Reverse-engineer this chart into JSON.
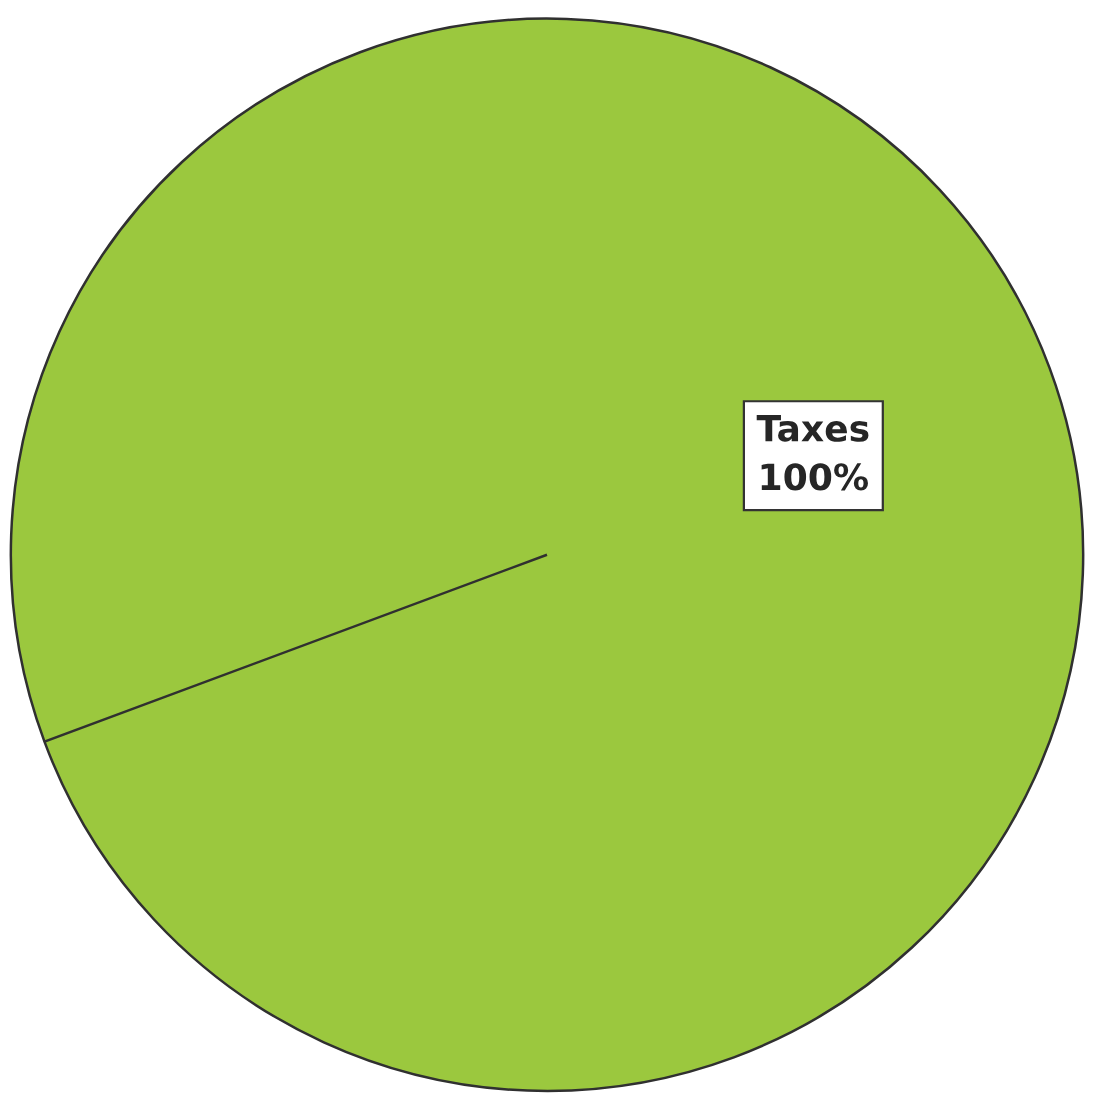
{
  "chart_data": {
    "type": "pie",
    "categories": [
      "Taxes"
    ],
    "values": [
      100
    ],
    "colors": [
      "#9bc83e"
    ],
    "value_labels": [
      "100%"
    ]
  }
}
